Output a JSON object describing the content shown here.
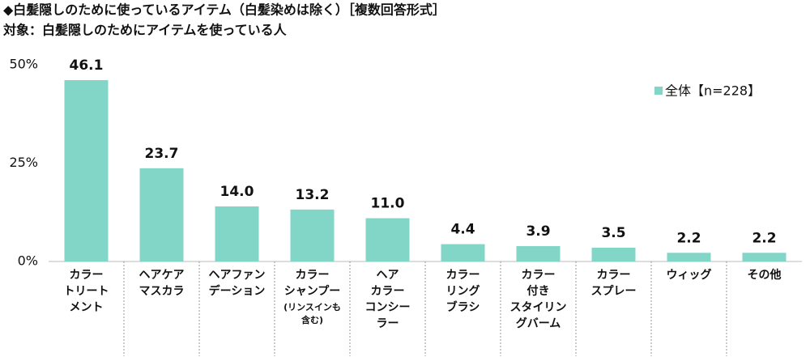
{
  "chart_data": {
    "type": "bar",
    "title": "◆白髪隠しのために使っているアイテム（白髪染めは除く）［複数回答形式］",
    "subtitle": "対象：白髪隠しのためにアイテムを使っている人",
    "categories": [
      [
        "カラー",
        "トリート",
        "メント"
      ],
      [
        "ヘアケア",
        "マスカラ"
      ],
      [
        "ヘアファン",
        "デーション"
      ],
      [
        "カラー",
        "シャンプー",
        "(リンスインも",
        "含む)"
      ],
      [
        "ヘア",
        "カラー",
        "コンシー",
        "ラー"
      ],
      [
        "カラー",
        "リング",
        "ブラシ"
      ],
      [
        "カラー",
        "付き",
        "スタイリン",
        "グバーム"
      ],
      [
        "カラー",
        "スプレー"
      ],
      [
        "ウィッグ"
      ],
      [
        "その他"
      ]
    ],
    "series": [
      {
        "name": "全体【n=228】",
        "color": "#82d6c7",
        "values": [
          46.1,
          23.7,
          14.0,
          13.2,
          11.0,
          4.4,
          3.9,
          3.5,
          2.2,
          2.2
        ],
        "value_labels": [
          "46.1",
          "23.7",
          "14.0",
          "13.2",
          "11.0",
          "4.4",
          "3.9",
          "3.5",
          "2.2",
          "2.2"
        ]
      }
    ],
    "ylim": [
      0,
      50
    ],
    "yticks": [
      {
        "value": 0,
        "label": "0%"
      },
      {
        "value": 25,
        "label": "25%"
      },
      {
        "value": 50,
        "label": "50%"
      }
    ],
    "legend": "upper-right"
  }
}
